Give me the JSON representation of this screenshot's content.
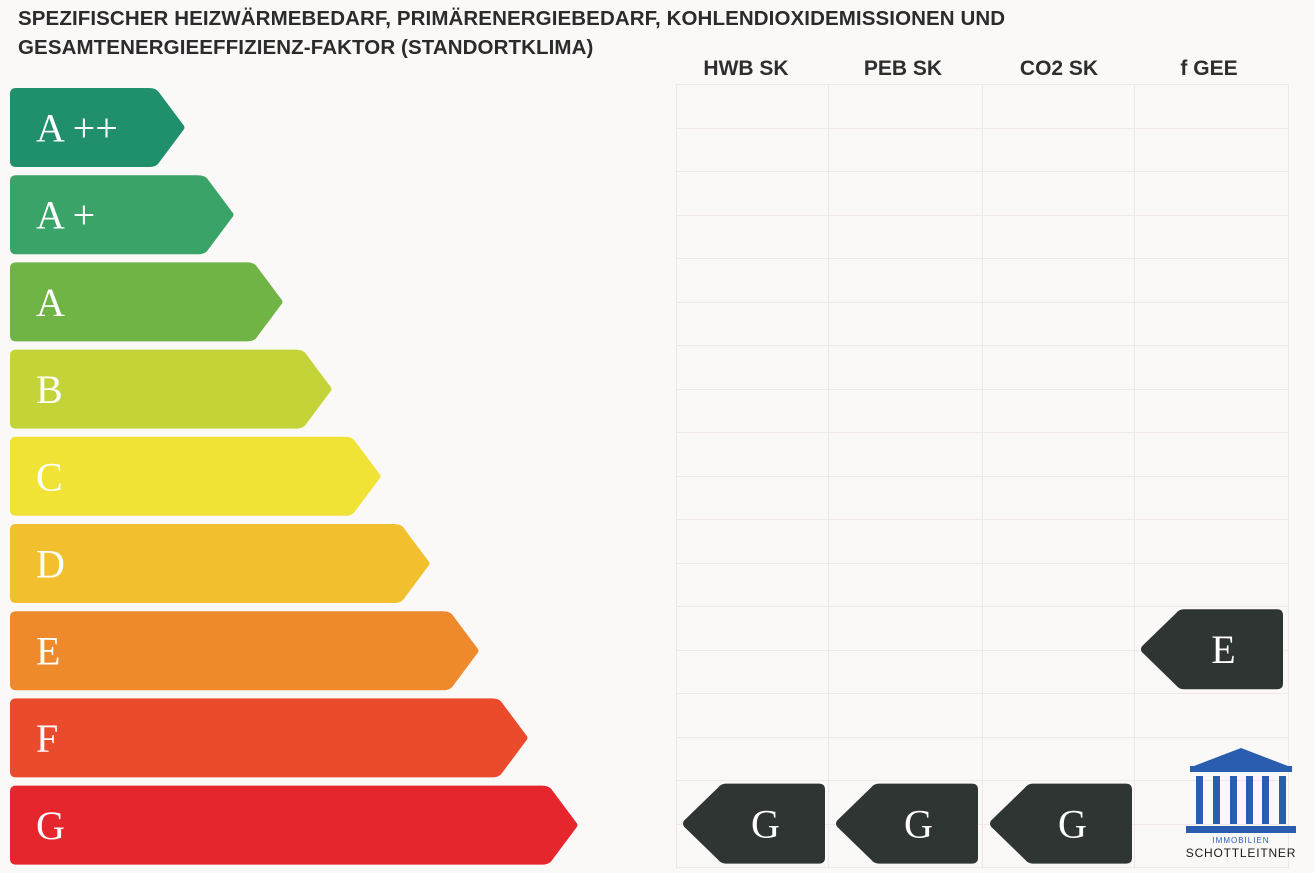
{
  "title": {
    "line1": "SPEZIFISCHER HEIZWÄRMEBEDARF, PRIMÄRENERGIEBEDARF, KOHLENDIOXIDEMISSIONEN UND",
    "line2": "GESAMTENERGIEEFFIZIENZ-FAKTOR (STANDORTKLIMA)"
  },
  "columns": [
    "HWB SK",
    "PEB SK",
    "CO2 SK",
    "f GEE"
  ],
  "bands": [
    {
      "label": "A ++",
      "color": "#1f8f6c"
    },
    {
      "label": "A +",
      "color": "#3aa468"
    },
    {
      "label": "A",
      "color": "#71b446"
    },
    {
      "label": "B",
      "color": "#c4d438"
    },
    {
      "label": "C",
      "color": "#f1e336"
    },
    {
      "label": "D",
      "color": "#f2c02e"
    },
    {
      "label": "E",
      "color": "#ee8a2c"
    },
    {
      "label": "F",
      "color": "#ea4b2c"
    },
    {
      "label": "G",
      "color": "#e5262d"
    }
  ],
  "ratings": [
    {
      "column": "HWB SK",
      "label": "G"
    },
    {
      "column": "PEB SK",
      "label": "G"
    },
    {
      "column": "CO2 SK",
      "label": "G"
    },
    {
      "column": "f GEE",
      "label": "E"
    }
  ],
  "marker_color": "#2f3533",
  "logo": {
    "line1": "IMMOBILIEN",
    "line2": "SCHOTTLEITNER",
    "color": "#2a5db0"
  }
}
